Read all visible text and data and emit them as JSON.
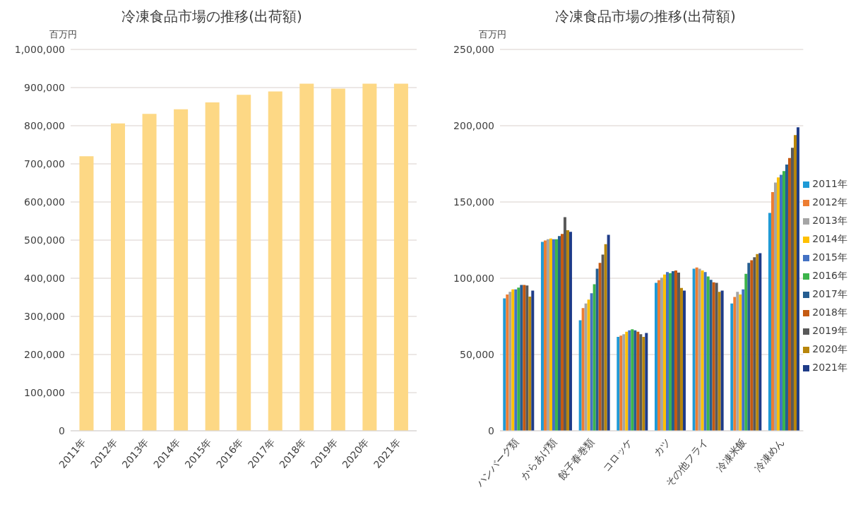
{
  "chart_data": [
    {
      "type": "bar",
      "title": "冷凍食品市場の推移(出荷額)",
      "ylabel": "百万円",
      "categories": [
        "2011年",
        "2012年",
        "2013年",
        "2014年",
        "2015年",
        "2016年",
        "2017年",
        "2018年",
        "2019年",
        "2020年",
        "2021年"
      ],
      "values": [
        720000,
        806000,
        831000,
        843000,
        861000,
        881000,
        890000,
        910000,
        897000,
        910000,
        910000
      ],
      "color": "#fdd885",
      "ylim": [
        0,
        1000000
      ],
      "yticks": [
        0,
        {
          "value": 100000,
          "label": "100,000"
        },
        {
          "value": 200000,
          "label": "200,000"
        },
        {
          "value": 300000,
          "label": "300,000"
        },
        {
          "value": 400000,
          "label": "400,000"
        },
        {
          "value": 500000,
          "label": "500,000"
        },
        {
          "value": 600000,
          "label": "600,000"
        },
        {
          "value": 700000,
          "label": "700,000"
        },
        {
          "value": 800000,
          "label": "800,000"
        },
        {
          "value": 900000,
          "label": "900,000"
        },
        {
          "value": 1000000,
          "label": "1,000,000"
        }
      ],
      "grid": "y",
      "legend": false
    },
    {
      "type": "bar",
      "title": "冷凍食品市場の推移(出荷額)",
      "ylabel": "百万円",
      "categories": [
        "ハンバーグ類",
        "からあげ類",
        "餃子春巻類",
        "コロッケ",
        "カツ",
        "その他フライ",
        "冷凍米飯",
        "冷凍めん"
      ],
      "ylim": [
        0,
        250000
      ],
      "yticks": [
        0,
        {
          "value": 50000,
          "label": "50,000"
        },
        {
          "value": 100000,
          "label": "100,000"
        },
        {
          "value": 150000,
          "label": "150,000"
        },
        {
          "value": 200000,
          "label": "200,000"
        },
        {
          "value": 250000,
          "label": "250,000"
        }
      ],
      "grid": "y",
      "legend": "right",
      "series": [
        {
          "name": "2011年",
          "color": "#1f9ad6",
          "values": [
            86800,
            123900,
            72500,
            61600,
            97000,
            106200,
            83500,
            142800
          ]
        },
        {
          "name": "2012年",
          "color": "#ed7d31",
          "values": [
            89400,
            124800,
            80400,
            62400,
            98700,
            107100,
            87700,
            156500
          ]
        },
        {
          "name": "2013年",
          "color": "#a5a5a5",
          "values": [
            91100,
            125600,
            83500,
            63300,
            100300,
            106200,
            91100,
            162700
          ]
        },
        {
          "name": "2014年",
          "color": "#ffc000",
          "values": [
            92700,
            126000,
            86000,
            64900,
            102400,
            105100,
            89400,
            166100
          ]
        },
        {
          "name": "2015年",
          "color": "#4472c4",
          "values": [
            92700,
            125600,
            90200,
            65800,
            104000,
            104000,
            92700,
            167800
          ]
        },
        {
          "name": "2016年",
          "color": "#3cb44b",
          "values": [
            93900,
            125600,
            96100,
            66600,
            103400,
            101200,
            102900,
            170300
          ]
        },
        {
          "name": "2017年",
          "color": "#255e91",
          "values": [
            95600,
            127700,
            106200,
            65800,
            104600,
            99000,
            110100,
            174500
          ]
        },
        {
          "name": "2018年",
          "color": "#c55a11",
          "values": [
            95600,
            129000,
            110100,
            64900,
            105100,
            97300,
            111800,
            178800
          ]
        },
        {
          "name": "2019年",
          "color": "#595959",
          "values": [
            95300,
            140000,
            115500,
            63300,
            103700,
            97000,
            113800,
            185500
          ]
        },
        {
          "name": "2020年",
          "color": "#b8860b",
          "values": [
            88000,
            131500,
            122300,
            61600,
            93600,
            91100,
            115900,
            193900
          ]
        },
        {
          "name": "2021年",
          "color": "#1f3c88",
          "values": [
            91900,
            130400,
            128500,
            64100,
            91900,
            91900,
            116400,
            199000
          ]
        }
      ]
    }
  ]
}
